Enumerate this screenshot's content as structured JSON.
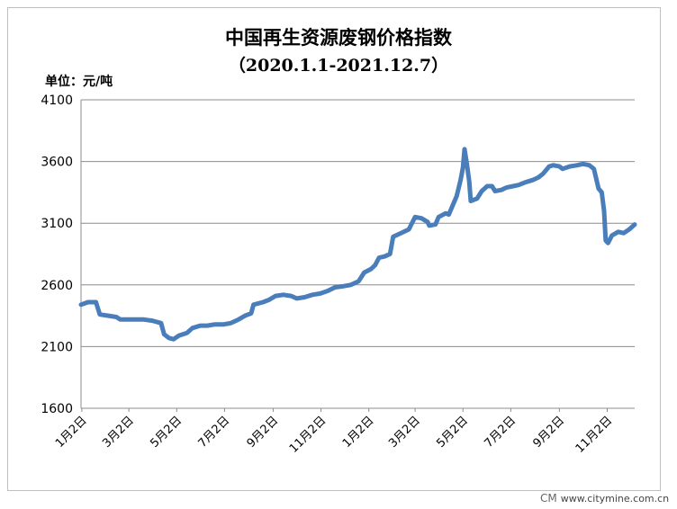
{
  "chart_data": {
    "type": "line",
    "title": "中国再生资源废钢价格指数",
    "subtitle": "（2020.1.1-2021.12.7）",
    "ylabel": "单位：元/吨",
    "ylim": [
      1600,
      4100
    ],
    "yticks": [
      1600,
      2100,
      2600,
      3100,
      3600,
      4100
    ],
    "xlim": [
      "2020-01-01",
      "2021-12-07"
    ],
    "xticks": [
      {
        "date": "2020-01-02",
        "label": "1月2日"
      },
      {
        "date": "2020-03-02",
        "label": "3月2日"
      },
      {
        "date": "2020-05-02",
        "label": "5月2日"
      },
      {
        "date": "2020-07-02",
        "label": "7月2日"
      },
      {
        "date": "2020-09-02",
        "label": "9月2日"
      },
      {
        "date": "2020-11-02",
        "label": "11月2日"
      },
      {
        "date": "2021-01-02",
        "label": "1月2日"
      },
      {
        "date": "2021-03-02",
        "label": "3月2日"
      },
      {
        "date": "2021-05-02",
        "label": "5月2日"
      },
      {
        "date": "2021-07-02",
        "label": "7月2日"
      },
      {
        "date": "2021-09-02",
        "label": "9月2日"
      },
      {
        "date": "2021-11-02",
        "label": "11月2日"
      }
    ],
    "grid": true,
    "legend": "none",
    "series": [
      {
        "color": "#4a7ebb",
        "points": [
          [
            "2020-01-01",
            2440
          ],
          [
            "2020-01-10",
            2460
          ],
          [
            "2020-01-20",
            2460
          ],
          [
            "2020-01-25",
            2360
          ],
          [
            "2020-02-05",
            2350
          ],
          [
            "2020-02-15",
            2340
          ],
          [
            "2020-02-20",
            2320
          ],
          [
            "2020-03-05",
            2320
          ],
          [
            "2020-03-20",
            2320
          ],
          [
            "2020-04-01",
            2310
          ],
          [
            "2020-04-12",
            2290
          ],
          [
            "2020-04-16",
            2200
          ],
          [
            "2020-04-22",
            2170
          ],
          [
            "2020-04-28",
            2160
          ],
          [
            "2020-05-05",
            2190
          ],
          [
            "2020-05-15",
            2210
          ],
          [
            "2020-05-22",
            2250
          ],
          [
            "2020-06-01",
            2270
          ],
          [
            "2020-06-10",
            2270
          ],
          [
            "2020-06-20",
            2280
          ],
          [
            "2020-07-01",
            2280
          ],
          [
            "2020-07-10",
            2290
          ],
          [
            "2020-07-20",
            2320
          ],
          [
            "2020-07-28",
            2350
          ],
          [
            "2020-08-05",
            2370
          ],
          [
            "2020-08-08",
            2440
          ],
          [
            "2020-08-20",
            2460
          ],
          [
            "2020-08-28",
            2480
          ],
          [
            "2020-09-05",
            2510
          ],
          [
            "2020-09-15",
            2520
          ],
          [
            "2020-09-25",
            2510
          ],
          [
            "2020-10-02",
            2490
          ],
          [
            "2020-10-12",
            2500
          ],
          [
            "2020-10-22",
            2520
          ],
          [
            "2020-11-01",
            2530
          ],
          [
            "2020-11-10",
            2550
          ],
          [
            "2020-11-20",
            2580
          ],
          [
            "2020-12-01",
            2590
          ],
          [
            "2020-12-10",
            2600
          ],
          [
            "2020-12-20",
            2630
          ],
          [
            "2020-12-27",
            2700
          ],
          [
            "2021-01-05",
            2730
          ],
          [
            "2021-01-10",
            2760
          ],
          [
            "2021-01-15",
            2820
          ],
          [
            "2021-01-22",
            2830
          ],
          [
            "2021-01-29",
            2850
          ],
          [
            "2021-02-02",
            2990
          ],
          [
            "2021-02-12",
            3020
          ],
          [
            "2021-02-22",
            3050
          ],
          [
            "2021-03-02",
            3150
          ],
          [
            "2021-03-10",
            3140
          ],
          [
            "2021-03-18",
            3110
          ],
          [
            "2021-03-20",
            3080
          ],
          [
            "2021-03-28",
            3090
          ],
          [
            "2021-04-01",
            3150
          ],
          [
            "2021-04-10",
            3180
          ],
          [
            "2021-04-14",
            3170
          ],
          [
            "2021-04-24",
            3320
          ],
          [
            "2021-04-29",
            3450
          ],
          [
            "2021-05-02",
            3550
          ],
          [
            "2021-05-04",
            3700
          ],
          [
            "2021-05-07",
            3580
          ],
          [
            "2021-05-10",
            3440
          ],
          [
            "2021-05-12",
            3280
          ],
          [
            "2021-05-20",
            3300
          ],
          [
            "2021-05-26",
            3360
          ],
          [
            "2021-06-02",
            3400
          ],
          [
            "2021-06-08",
            3400
          ],
          [
            "2021-06-12",
            3360
          ],
          [
            "2021-06-20",
            3370
          ],
          [
            "2021-06-27",
            3390
          ],
          [
            "2021-07-05",
            3400
          ],
          [
            "2021-07-12",
            3410
          ],
          [
            "2021-07-20",
            3430
          ],
          [
            "2021-07-30",
            3450
          ],
          [
            "2021-08-06",
            3470
          ],
          [
            "2021-08-12",
            3500
          ],
          [
            "2021-08-20",
            3560
          ],
          [
            "2021-08-25",
            3570
          ],
          [
            "2021-09-02",
            3560
          ],
          [
            "2021-09-06",
            3540
          ],
          [
            "2021-09-15",
            3560
          ],
          [
            "2021-09-25",
            3570
          ],
          [
            "2021-10-02",
            3580
          ],
          [
            "2021-10-10",
            3570
          ],
          [
            "2021-10-16",
            3540
          ],
          [
            "2021-10-22",
            3380
          ],
          [
            "2021-10-26",
            3350
          ],
          [
            "2021-10-29",
            3200
          ],
          [
            "2021-10-31",
            2960
          ],
          [
            "2021-11-03",
            2940
          ],
          [
            "2021-11-08",
            3000
          ],
          [
            "2021-11-16",
            3030
          ],
          [
            "2021-11-23",
            3020
          ],
          [
            "2021-11-30",
            3050
          ],
          [
            "2021-12-07",
            3090
          ]
        ]
      }
    ]
  },
  "watermark": {
    "logo": "CM",
    "text": "www.citymine.com.cn"
  }
}
